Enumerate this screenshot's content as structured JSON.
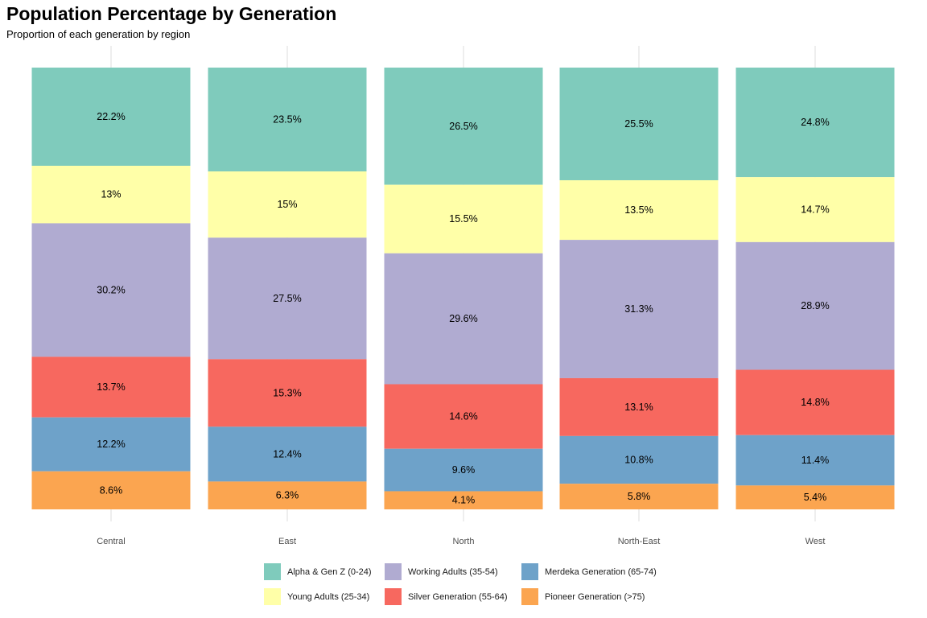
{
  "chart_data": {
    "type": "bar",
    "stacked": true,
    "percent": true,
    "title": "Population Percentage by Generation",
    "subtitle": "Proportion of each generation by region",
    "categories": [
      "Central",
      "East",
      "North",
      "North-East",
      "West"
    ],
    "ylim": [
      0,
      100
    ],
    "grid": true,
    "legend_position": "bottom",
    "series": [
      {
        "name": "Alpha & Gen Z (0-24)",
        "color": "#7fcbbc",
        "values": [
          22.2,
          23.5,
          26.5,
          25.5,
          24.8
        ],
        "labels": [
          "22.2%",
          "23.5%",
          "26.5%",
          "25.5%",
          "24.8%"
        ]
      },
      {
        "name": "Young Adults (25-34)",
        "color": "#ffffa8",
        "values": [
          13,
          15,
          15.5,
          13.5,
          14.7
        ],
        "labels": [
          "13%",
          "15%",
          "15.5%",
          "13.5%",
          "14.7%"
        ]
      },
      {
        "name": "Working Adults (35-54)",
        "color": "#b0abd1",
        "values": [
          30.2,
          27.5,
          29.6,
          31.3,
          28.9
        ],
        "labels": [
          "30.2%",
          "27.5%",
          "29.6%",
          "31.3%",
          "28.9%"
        ]
      },
      {
        "name": "Silver Generation (55-64)",
        "color": "#f7685f",
        "values": [
          13.7,
          15.3,
          14.6,
          13.1,
          14.8
        ],
        "labels": [
          "13.7%",
          "15.3%",
          "14.6%",
          "13.1%",
          "14.8%"
        ]
      },
      {
        "name": "Merdeka Generation (65-74)",
        "color": "#6ea2c9",
        "values": [
          12.2,
          12.4,
          9.6,
          10.8,
          11.4
        ],
        "labels": [
          "12.2%",
          "12.4%",
          "9.6%",
          "10.8%",
          "11.4%"
        ]
      },
      {
        "name": "Pioneer Generation (>75)",
        "color": "#fba550",
        "values": [
          8.6,
          6.3,
          4.1,
          5.8,
          5.4
        ],
        "labels": [
          "8.6%",
          "6.3%",
          "4.1%",
          "5.8%",
          "5.4%"
        ]
      }
    ]
  }
}
